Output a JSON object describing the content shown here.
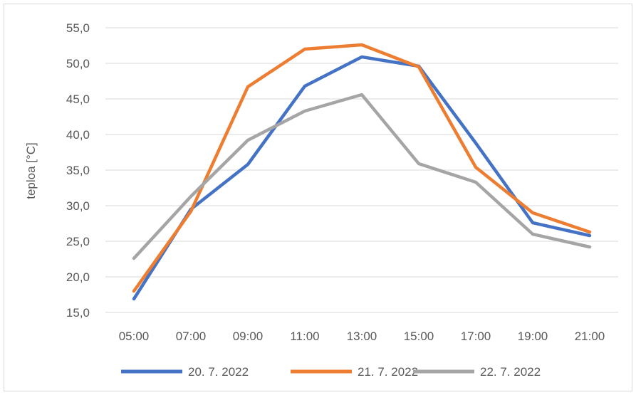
{
  "chart_data": {
    "type": "line",
    "ylabel": "teploa [°C]",
    "ylim": [
      15,
      55
    ],
    "yticks": [
      "15,0",
      "20,0",
      "25,0",
      "30,0",
      "35,0",
      "40,0",
      "45,0",
      "50,0",
      "55,0"
    ],
    "categories": [
      "05:00",
      "07:00",
      "09:00",
      "11:00",
      "13:00",
      "15:00",
      "17:00",
      "19:00",
      "21:00"
    ],
    "grid": true,
    "legend": "bottom",
    "series": [
      {
        "name": "20. 7. 2022",
        "color": "#4472C4",
        "values": [
          16.9,
          29.5,
          35.8,
          46.8,
          50.9,
          49.6,
          38.8,
          27.6,
          25.8
        ]
      },
      {
        "name": "21. 7. 2022",
        "color": "#ED7D31",
        "values": [
          18.0,
          29.2,
          46.7,
          52.0,
          52.6,
          49.5,
          35.4,
          29.0,
          26.3
        ]
      },
      {
        "name": "22. 7. 2022",
        "color": "#A5A5A5",
        "values": [
          22.6,
          31.3,
          39.2,
          43.3,
          45.6,
          35.9,
          33.3,
          26.0,
          24.2
        ]
      }
    ]
  }
}
